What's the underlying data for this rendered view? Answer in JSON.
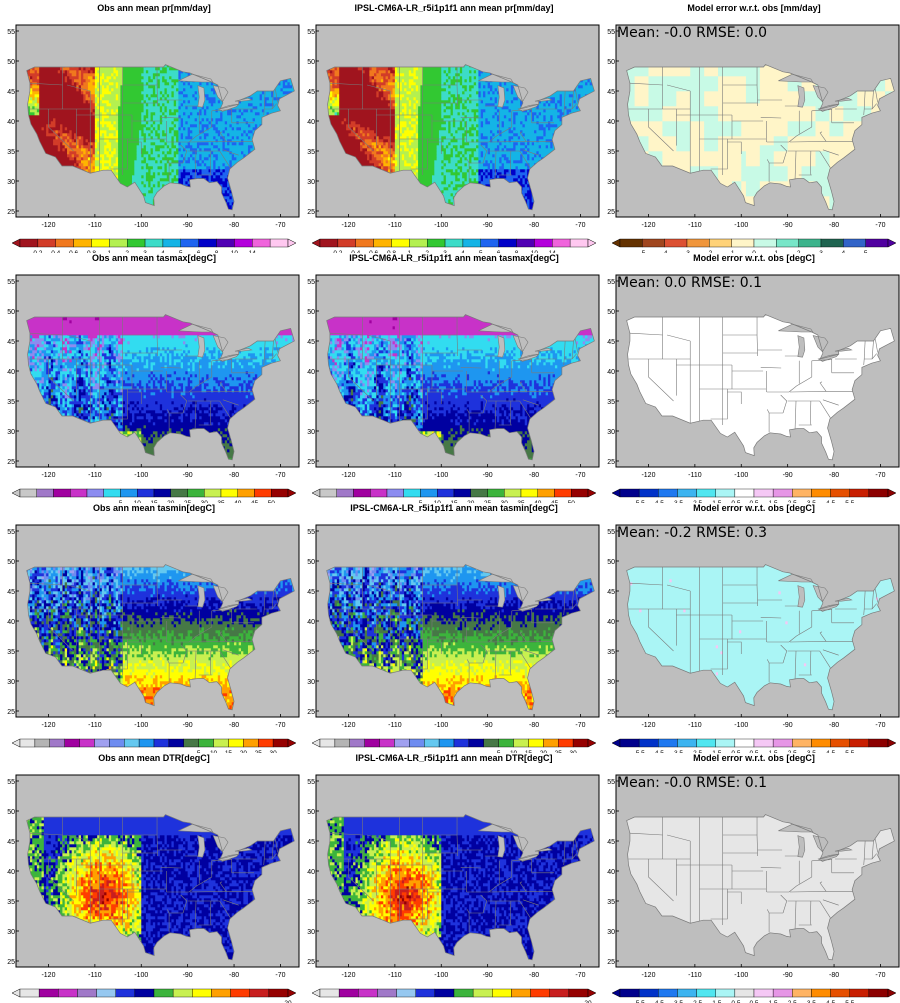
{
  "colors": {
    "ocean": "#bebebe",
    "border": "#7a7a7a",
    "missing": "#a8a8a8"
  },
  "chart_data": [
    {
      "type": "heatmap",
      "title": "Obs  ann mean pr[mm/day]",
      "variable": "pr",
      "kind": "obs",
      "xticks": [
        "-120",
        "-110",
        "-100",
        "-90",
        "-80",
        "-70"
      ],
      "yticks": [
        "55",
        "50",
        "45",
        "40",
        "35",
        "30",
        "25"
      ],
      "colorbar_labels": [
        "0.2",
        "0.4",
        "0.6",
        "0.8",
        "1",
        "2",
        "3",
        "4",
        "5",
        "6",
        "8",
        "10",
        "14"
      ],
      "colorbar_colors": [
        "#a0141e",
        "#d23c28",
        "#f0781e",
        "#ffb400",
        "#ffff00",
        "#b4f050",
        "#32c832",
        "#3cdcc8",
        "#14b4e6",
        "#1e64f0",
        "#0000c8",
        "#5000b4",
        "#b400dc",
        "#f064dc",
        "#ffc8f0"
      ],
      "regions": {
        "ne": 10,
        "se": 9,
        "c": 8,
        "nw": 5,
        "sw": 3
      }
    },
    {
      "type": "heatmap",
      "title": "IPSL-CM6A-LR_r5i1p1f1 ann mean pr[mm/day]",
      "variable": "pr",
      "kind": "model",
      "xticks": [
        "-120",
        "-110",
        "-100",
        "-90",
        "-80",
        "-70"
      ],
      "yticks": [
        "55",
        "50",
        "45",
        "40",
        "35",
        "30",
        "25"
      ],
      "colorbar_labels": [
        "0.2",
        "0.4",
        "0.6",
        "0.8",
        "1",
        "2",
        "3",
        "4",
        "5",
        "6",
        "8",
        "10",
        "14"
      ],
      "colorbar_colors": [
        "#a0141e",
        "#d23c28",
        "#f0781e",
        "#ffb400",
        "#ffff00",
        "#b4f050",
        "#32c832",
        "#3cdcc8",
        "#14b4e6",
        "#1e64f0",
        "#0000c8",
        "#5000b4",
        "#b400dc",
        "#f064dc",
        "#ffc8f0"
      ],
      "regions": {
        "ne": 10,
        "se": 9,
        "c": 8,
        "nw": 5,
        "sw": 3
      }
    },
    {
      "type": "heatmap",
      "title": "Model error w.r.t. obs [mm/day]",
      "variable": "pr",
      "kind": "error",
      "stats_text": "Mean: -0.0   RMSE: 0.0",
      "mean": -0.0,
      "rmse": 0.0,
      "xticks": [
        "-120",
        "-110",
        "-100",
        "-90",
        "-80",
        "-70"
      ],
      "yticks": [
        "55",
        "50",
        "45",
        "40",
        "35",
        "30",
        "25"
      ],
      "colorbar_labels": [
        "-5",
        "-4",
        "-3",
        "-2",
        "-1",
        "0",
        "1",
        "2",
        "3",
        "4",
        "5"
      ],
      "colorbar_colors": [
        "#643200",
        "#a0461e",
        "#dc5032",
        "#f0963c",
        "#ffd278",
        "#fff5c8",
        "#c8fae6",
        "#78e6c8",
        "#3cb48c",
        "#1e6450",
        "#3264c8",
        "#5000a0"
      ],
      "regions": {
        "ne": 5,
        "se": 6,
        "c": 5,
        "nw": 6,
        "sw": 5
      }
    },
    {
      "type": "heatmap",
      "title": "Obs  ann mean tasmax[degC]",
      "variable": "tasmax",
      "kind": "obs",
      "xticks": [
        "-120",
        "-110",
        "-100",
        "-90",
        "-80",
        "-70"
      ],
      "yticks": [
        "55",
        "50",
        "45",
        "40",
        "35",
        "30",
        "25"
      ],
      "colorbar_labels": [
        "5",
        "10",
        "15",
        "20",
        "25",
        "30",
        "35",
        "40",
        "45",
        "50"
      ],
      "colorbar_colors": [
        "#c8c8c8",
        "#a078c8",
        "#a000a0",
        "#c832c8",
        "#8c8cf0",
        "#32dcf0",
        "#1e96f0",
        "#1e32dc",
        "#0000a0",
        "#467846",
        "#3cb43c",
        "#c8f050",
        "#ffff00",
        "#ffa000",
        "#ff3c00",
        "#960000"
      ],
      "regions": {
        "ne": 2,
        "se": 7,
        "c": 5,
        "nw": 3,
        "sw": 6
      }
    },
    {
      "type": "heatmap",
      "title": "IPSL-CM6A-LR_r5i1p1f1 ann mean tasmax[degC]",
      "variable": "tasmax",
      "kind": "model",
      "xticks": [
        "-120",
        "-110",
        "-100",
        "-90",
        "-80",
        "-70"
      ],
      "yticks": [
        "55",
        "50",
        "45",
        "40",
        "35",
        "30",
        "25"
      ],
      "colorbar_labels": [
        "5",
        "10",
        "15",
        "20",
        "25",
        "30",
        "35",
        "40",
        "45",
        "50"
      ],
      "colorbar_colors": [
        "#c8c8c8",
        "#a078c8",
        "#a000a0",
        "#c832c8",
        "#8c8cf0",
        "#32dcf0",
        "#1e96f0",
        "#1e32dc",
        "#0000a0",
        "#467846",
        "#3cb43c",
        "#c8f050",
        "#ffff00",
        "#ffa000",
        "#ff3c00",
        "#960000"
      ],
      "regions": {
        "ne": 2,
        "se": 7,
        "c": 5,
        "nw": 3,
        "sw": 6
      }
    },
    {
      "type": "heatmap",
      "title": "Model error w.r.t. obs [degC]",
      "variable": "tasmax",
      "kind": "error",
      "stats_text": "Mean: 0.0   RMSE: 0.1",
      "mean": 0.0,
      "rmse": 0.1,
      "xticks": [
        "-120",
        "-110",
        "-100",
        "-90",
        "-80",
        "-70"
      ],
      "yticks": [
        "55",
        "50",
        "45",
        "40",
        "35",
        "30",
        "25"
      ],
      "colorbar_labels": [
        "-5.5",
        "-4.5",
        "-3.5",
        "-2.5",
        "-1.5",
        "-0.5",
        "0.5",
        "1.5",
        "2.5",
        "3.5",
        "4.5",
        "5.5"
      ],
      "colorbar_colors": [
        "#00008c",
        "#0032c8",
        "#1e78f0",
        "#3cb4f0",
        "#50e6f0",
        "#aaf5f5",
        "#ffffff",
        "#f5c8f5",
        "#e696e6",
        "#ffb464",
        "#ff8c00",
        "#e65000",
        "#c81e00",
        "#8c0000"
      ],
      "regions": {
        "ne": 6,
        "se": 6,
        "c": 6,
        "nw": 6,
        "sw": 6
      }
    },
    {
      "type": "heatmap",
      "title": "Obs  ann mean tasmin[degC]",
      "variable": "tasmin",
      "kind": "obs",
      "xticks": [
        "-120",
        "-110",
        "-100",
        "-90",
        "-80",
        "-70"
      ],
      "yticks": [
        "55",
        "50",
        "45",
        "40",
        "35",
        "30",
        "25"
      ],
      "colorbar_labels": [
        "5",
        "10",
        "15",
        "20",
        "25",
        "30"
      ],
      "colorbar_colors": [
        "#e6e6e6",
        "#b4b4b4",
        "#a078c8",
        "#a000a0",
        "#c832c8",
        "#a0a0f0",
        "#6e8cf0",
        "#64c8f0",
        "#1e96f0",
        "#1e32dc",
        "#0000a0",
        "#467846",
        "#3cb43c",
        "#c8f050",
        "#ffff00",
        "#ffa000",
        "#ff3c00",
        "#960000"
      ],
      "regions": {
        "ne": 6,
        "se": 14,
        "c": 9,
        "nw": 6,
        "sw": 11
      }
    },
    {
      "type": "heatmap",
      "title": "IPSL-CM6A-LR_r5i1p1f1 ann mean tasmin[degC]",
      "variable": "tasmin",
      "kind": "model",
      "xticks": [
        "-120",
        "-110",
        "-100",
        "-90",
        "-80",
        "-70"
      ],
      "yticks": [
        "55",
        "50",
        "45",
        "40",
        "35",
        "30",
        "25"
      ],
      "colorbar_labels": [
        "5",
        "10",
        "15",
        "20",
        "25",
        "30"
      ],
      "colorbar_colors": [
        "#e6e6e6",
        "#b4b4b4",
        "#a078c8",
        "#a000a0",
        "#c832c8",
        "#a0a0f0",
        "#6e8cf0",
        "#64c8f0",
        "#1e96f0",
        "#1e32dc",
        "#0000a0",
        "#467846",
        "#3cb43c",
        "#c8f050",
        "#ffff00",
        "#ffa000",
        "#ff3c00",
        "#960000"
      ],
      "regions": {
        "ne": 6,
        "se": 14,
        "c": 9,
        "nw": 6,
        "sw": 11
      }
    },
    {
      "type": "heatmap",
      "title": "Model error w.r.t. obs [degC]",
      "variable": "tasmin",
      "kind": "error",
      "stats_text": "Mean: -0.2   RMSE: 0.3",
      "mean": -0.2,
      "rmse": 0.3,
      "xticks": [
        "-120",
        "-110",
        "-100",
        "-90",
        "-80",
        "-70"
      ],
      "yticks": [
        "55",
        "50",
        "45",
        "40",
        "35",
        "30",
        "25"
      ],
      "colorbar_labels": [
        "-5.5",
        "-4.5",
        "-3.5",
        "-2.5",
        "-1.5",
        "-0.5",
        "0.5",
        "1.5",
        "2.5",
        "3.5",
        "4.5",
        "5.5"
      ],
      "colorbar_colors": [
        "#00008c",
        "#0032c8",
        "#1e78f0",
        "#3cb4f0",
        "#50e6f0",
        "#aaf5f5",
        "#ffffff",
        "#f5c8f5",
        "#e696e6",
        "#ffb464",
        "#ff8c00",
        "#e65000",
        "#c81e00",
        "#8c0000"
      ],
      "regions": {
        "ne": 6,
        "se": 6,
        "c": 5,
        "nw": 6,
        "sw": 6
      }
    },
    {
      "type": "heatmap",
      "title": "Obs  ann mean DTR[degC]",
      "variable": "DTR",
      "kind": "obs",
      "xticks": [
        "-120",
        "-110",
        "-100",
        "-90",
        "-80",
        "-70"
      ],
      "yticks": [
        "55",
        "50",
        "45",
        "40",
        "35",
        "30",
        "25"
      ],
      "colorbar_labels": [
        "20"
      ],
      "colorbar_colors": [
        "#e6e6e6",
        "#a000a0",
        "#c832c8",
        "#a078c8",
        "#96c8f0",
        "#1e32dc",
        "#0000a0",
        "#3cb43c",
        "#c8f050",
        "#ffff00",
        "#ffa000",
        "#ff3c00",
        "#c81e1e",
        "#960000"
      ],
      "regions": {
        "ne": 2,
        "se": 6,
        "c": 5,
        "nw": 9,
        "sw": 11
      }
    },
    {
      "type": "heatmap",
      "title": "IPSL-CM6A-LR_r5i1p1f1 ann mean DTR[degC]",
      "variable": "DTR",
      "kind": "model",
      "xticks": [
        "-120",
        "-110",
        "-100",
        "-90",
        "-80",
        "-70"
      ],
      "yticks": [
        "55",
        "50",
        "45",
        "40",
        "35",
        "30",
        "25"
      ],
      "colorbar_labels": [
        "20"
      ],
      "colorbar_colors": [
        "#e6e6e6",
        "#a000a0",
        "#c832c8",
        "#a078c8",
        "#96c8f0",
        "#1e32dc",
        "#0000a0",
        "#3cb43c",
        "#c8f050",
        "#ffff00",
        "#ffa000",
        "#ff3c00",
        "#c81e1e",
        "#960000"
      ],
      "regions": {
        "ne": 2,
        "se": 6,
        "c": 5,
        "nw": 9,
        "sw": 11
      }
    },
    {
      "type": "heatmap",
      "title": "Model error w.r.t. obs [degC]",
      "variable": "DTR",
      "kind": "error",
      "stats_text": "Mean: -0.0   RMSE: 0.1",
      "mean": -0.0,
      "rmse": 0.1,
      "xticks": [
        "-120",
        "-110",
        "-100",
        "-90",
        "-80",
        "-70"
      ],
      "yticks": [
        "55",
        "50",
        "45",
        "40",
        "35",
        "30",
        "25"
      ],
      "colorbar_labels": [
        "-5.5",
        "-4.5",
        "-3.5",
        "-2.5",
        "-1.5",
        "-0.5",
        "0.5",
        "1.5",
        "2.5",
        "3.5",
        "4.5",
        "5.5"
      ],
      "colorbar_colors": [
        "#00008c",
        "#0032c8",
        "#1e78f0",
        "#3cb4f0",
        "#50e6f0",
        "#aaf5f5",
        "#e6e6e6",
        "#f5c8f5",
        "#e696e6",
        "#ffb464",
        "#ff8c00",
        "#e65000",
        "#c81e00",
        "#8c0000"
      ],
      "regions": {
        "ne": 6,
        "se": 6,
        "c": 6,
        "nw": 6,
        "sw": 6
      }
    }
  ]
}
